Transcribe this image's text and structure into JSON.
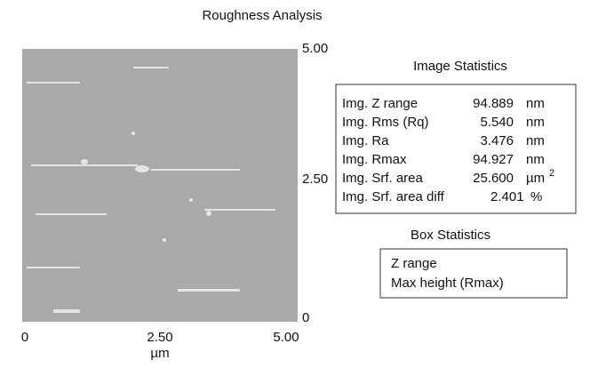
{
  "title": "Roughness Analysis",
  "image": {
    "y_labels": [
      "5.00",
      "2.50",
      "0"
    ],
    "x_labels": [
      "0",
      "2.50",
      "5.00"
    ],
    "x_unit": "µm"
  },
  "image_statistics": {
    "title": "Image Statistics",
    "rows": [
      {
        "label": "Img. Z range",
        "value": "94.889",
        "unit": "nm"
      },
      {
        "label": "Img. Rms (Rq)",
        "value": "5.540",
        "unit": "nm"
      },
      {
        "label": "Img. Ra",
        "value": "3.476",
        "unit": "nm"
      },
      {
        "label": "Img. Rmax",
        "value": "94.927",
        "unit": "nm"
      },
      {
        "label": "Img. Srf. area",
        "value": "25.600",
        "unit": "µm",
        "unit_exponent": "2"
      },
      {
        "label": "Img. Srf. area diff",
        "value": "2.401",
        "unit": "%"
      }
    ]
  },
  "box_statistics": {
    "title": "Box Statistics",
    "rows": [
      "Z range",
      "Max height (Rmax)"
    ]
  }
}
